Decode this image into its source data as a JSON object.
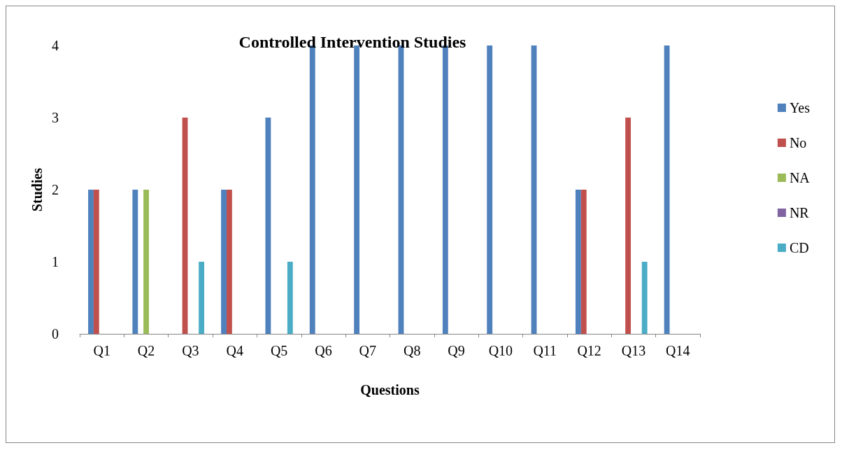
{
  "chart_data": {
    "type": "bar",
    "title": "Controlled Intervention Studies",
    "xlabel": "Questions",
    "ylabel": "Studies",
    "categories": [
      "Q1",
      "Q2",
      "Q3",
      "Q4",
      "Q5",
      "Q6",
      "Q7",
      "Q8",
      "Q9",
      "Q10",
      "Q11",
      "Q12",
      "Q13",
      "Q14"
    ],
    "series": [
      {
        "name": "Yes",
        "color": "#4f81bd",
        "values": [
          2,
          2,
          0,
          2,
          3,
          4,
          4,
          4,
          4,
          4,
          4,
          2,
          0,
          4
        ]
      },
      {
        "name": "No",
        "color": "#c0504d",
        "values": [
          2,
          0,
          3,
          2,
          0,
          0,
          0,
          0,
          0,
          0,
          0,
          2,
          3,
          0
        ]
      },
      {
        "name": "NA",
        "color": "#9bbb59",
        "values": [
          0,
          2,
          0,
          0,
          0,
          0,
          0,
          0,
          0,
          0,
          0,
          0,
          0,
          0
        ]
      },
      {
        "name": "NR",
        "color": "#8064a2",
        "values": [
          0,
          0,
          0,
          0,
          0,
          0,
          0,
          0,
          0,
          0,
          0,
          0,
          0,
          0
        ]
      },
      {
        "name": "CD",
        "color": "#4bacc6",
        "values": [
          0,
          0,
          1,
          0,
          1,
          0,
          0,
          0,
          0,
          0,
          0,
          0,
          1,
          0
        ]
      }
    ],
    "ylim": [
      0,
      4
    ],
    "yticks": [
      0,
      1,
      2,
      3,
      4
    ],
    "grid": false,
    "legend": "right"
  }
}
